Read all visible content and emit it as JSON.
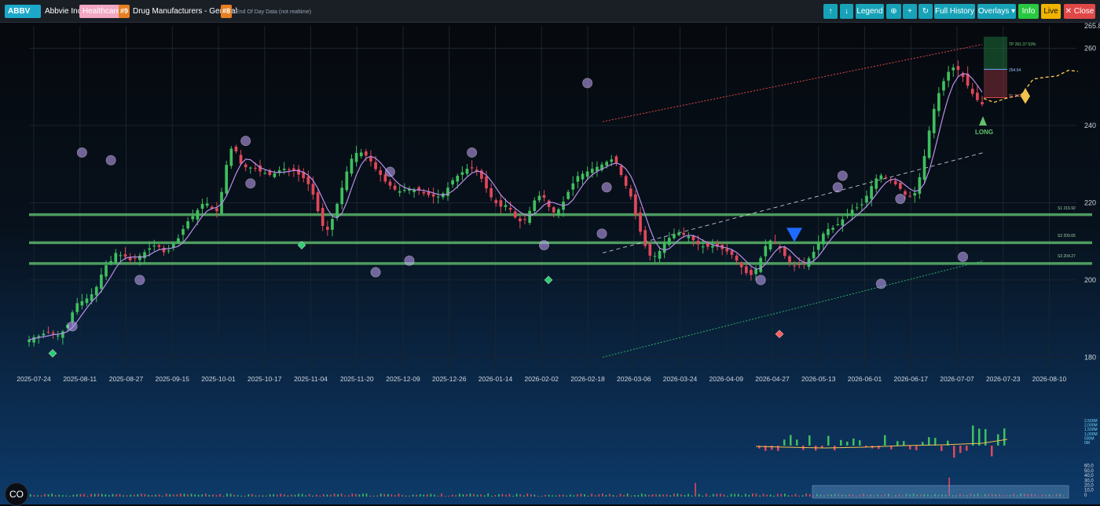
{
  "header": {
    "ticker": "ABBV",
    "company": "Abbvie Inc",
    "sector": "Healthcare",
    "sector_rank": "#9",
    "industry": "Drug Manufacturers - General",
    "industry_rank": "#8",
    "data_note": "End Of Day Data (not realtime)"
  },
  "toolbar": {
    "up_icon": "↑",
    "down_icon": "↓",
    "legend_label": "Legend",
    "zoom_icon": "⊕",
    "plus_icon": "+",
    "refresh_icon": "↻",
    "full_history_label": "Full History",
    "overlays_label": "Overlays ▾",
    "info_label": "Info",
    "live_label": "Live",
    "close_label": "✕ Close"
  },
  "chart_data": {
    "type": "candlestick",
    "x_ticks": [
      "2025-07-24",
      "2025-08-11",
      "2025-08-27",
      "2025-09-15",
      "2025-10-01",
      "2025-10-17",
      "2025-11-04",
      "2025-11-20",
      "2025-12-09",
      "2025-12-26",
      "2026-01-14",
      "2026-02-02",
      "2026-02-18",
      "2026-03-06",
      "2026-03-24",
      "2026-04-09",
      "2026-04-27",
      "2026-05-13",
      "2026-06-01",
      "2026-06-17",
      "2026-07-07",
      "2026-07-23",
      "2026-08-10"
    ],
    "y_ticks": [
      180,
      200,
      220,
      240,
      260
    ],
    "y_top_label": "265.8",
    "ylim": [
      175.8,
      265.8
    ],
    "support_levels": [
      {
        "label": "S1 216.92",
        "value": 216.92
      },
      {
        "label": "S2 209.65",
        "value": 209.65
      },
      {
        "label": "S3 204.27",
        "value": 204.27
      }
    ],
    "trade": {
      "signal": "LONG",
      "tp_label": "TP 261.37 53%",
      "tp": 261.37,
      "entry_label": "254.54",
      "entry": 254.54,
      "sl_label": "SL 247",
      "sl": 247.2
    },
    "closes": [
      184.5,
      185.2,
      185.5,
      186.1,
      186.4,
      186.1,
      185.6,
      186.7,
      188.4,
      191.6,
      194.0,
      194.5,
      195.2,
      196.3,
      198.2,
      201.4,
      203.8,
      204.9,
      207.0,
      206.4,
      206.0,
      205.1,
      205.6,
      206.3,
      207.2,
      208.2,
      208.9,
      208.6,
      207.2,
      207.6,
      209.5,
      210.8,
      213.2,
      215.2,
      216.5,
      218.1,
      219.7,
      219.8,
      218.5,
      217.8,
      222.8,
      229.8,
      234.0,
      233.3,
      230.1,
      229.2,
      229.1,
      228.9,
      228.1,
      227.7,
      227.2,
      227.6,
      228.4,
      228.8,
      228.6,
      228.4,
      227.3,
      226.4,
      224.8,
      222.1,
      217.8,
      214.0,
      213.0,
      215.8,
      219.7,
      223.9,
      228.1,
      231.4,
      232.9,
      233.0,
      232.2,
      230.7,
      228.7,
      227.2,
      225.5,
      224.4,
      223.4,
      223.0,
      223.3,
      223.6,
      223.4,
      223.2,
      222.4,
      222.0,
      221.6,
      221.6,
      222.4,
      223.9,
      225.8,
      227.0,
      227.9,
      228.8,
      228.9,
      228.2,
      226.2,
      223.7,
      221.4,
      219.9,
      219.0,
      219.4,
      218.2,
      216.2,
      215.2,
      215.6,
      217.9,
      220.6,
      221.8,
      221.3,
      218.9,
      217.5,
      218.3,
      220.3,
      222.8,
      225.0,
      226.9,
      227.5,
      228.1,
      228.8,
      229.3,
      229.9,
      230.6,
      231.2,
      230.3,
      227.2,
      224.4,
      221.6,
      216.8,
      212.5,
      208.8,
      206.3,
      206.2,
      207.5,
      209.6,
      210.9,
      211.8,
      212.3,
      211.7,
      211.3,
      210.3,
      209.2,
      208.7,
      208.6,
      208.8,
      208.6,
      208.0,
      207.4,
      206.5,
      205.0,
      203.3,
      201.8,
      201.3,
      202.8,
      205.7,
      208.8,
      210.2,
      209.6,
      208.2,
      206.2,
      204.6,
      203.7,
      203.8,
      204.3,
      205.6,
      207.3,
      209.7,
      212.0,
      213.2,
      213.5,
      214.4,
      215.7,
      216.9,
      218.2,
      218.8,
      219.6,
      221.8,
      224.3,
      226.3,
      227.1,
      226.6,
      225.7,
      224.8,
      223.6,
      222.1,
      221.7,
      222.5,
      226.6,
      232.1,
      238.7,
      244.3,
      248.4,
      251.5,
      253.9,
      255.0,
      254.4,
      252.6,
      250.3,
      248.2,
      246.6,
      245.5
    ]
  },
  "volume": {
    "y_ticks": [
      "2,500M",
      "2,000M",
      "1,500M",
      "1,000M",
      "500M",
      "0M"
    ]
  },
  "navigator": {
    "y_ticks": [
      "1,000",
      "60,0",
      "50,0",
      "40,0",
      "30,0",
      "20,0",
      "10,0",
      "0"
    ]
  },
  "fab_icon": "CO",
  "colors": {
    "up": "#3fbf5f",
    "down": "#e2475a",
    "ma": "#b98ee8",
    "support": "#5ab56a",
    "channel_upper": "#e04848",
    "channel_mid": "#d8dde6",
    "channel_lower": "#2fae6a",
    "forecast": "#f2c14e",
    "tp_zone": "#1f6f3a",
    "sl_zone": "#7a2d35",
    "ticker_bg": "#1ca8c9"
  }
}
